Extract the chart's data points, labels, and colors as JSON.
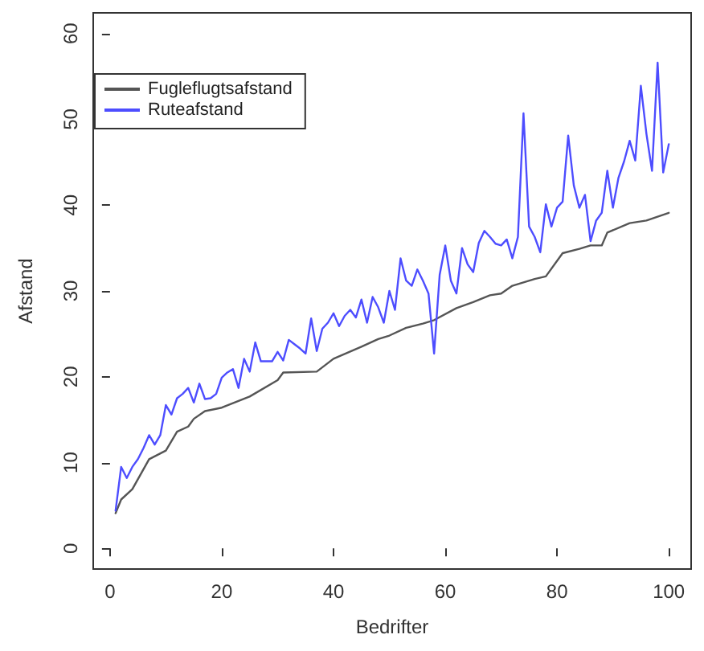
{
  "chart_data": {
    "type": "line",
    "xlabel": "Bedrifter",
    "ylabel": "Afstand",
    "x": [
      1,
      2,
      3,
      4,
      5,
      6,
      7,
      8,
      9,
      10,
      11,
      12,
      13,
      14,
      15,
      16,
      17,
      18,
      19,
      20,
      21,
      22,
      23,
      24,
      25,
      26,
      27,
      28,
      29,
      30,
      31,
      32,
      33,
      34,
      35,
      36,
      37,
      38,
      39,
      40,
      41,
      42,
      43,
      44,
      45,
      46,
      47,
      48,
      49,
      50,
      51,
      52,
      53,
      54,
      55,
      56,
      57,
      58,
      59,
      60,
      61,
      62,
      63,
      64,
      65,
      66,
      67,
      68,
      69,
      70,
      71,
      72,
      73,
      74,
      75,
      76,
      77,
      78,
      79,
      80,
      81,
      82,
      83,
      84,
      85,
      86,
      87,
      88,
      89,
      90,
      91,
      92,
      93,
      94,
      95,
      96,
      97,
      98,
      99,
      100
    ],
    "series": [
      {
        "name": "Fugleflugtsafstand",
        "color": "#555555",
        "x": [
          1,
          2,
          4,
          7,
          10,
          12,
          14,
          15,
          17,
          20,
          25,
          30,
          31,
          37,
          40,
          45,
          48,
          50,
          53,
          56,
          58,
          62,
          65,
          68,
          70,
          72,
          76,
          78,
          81,
          84,
          86,
          88,
          89,
          93,
          96,
          100
        ],
        "values": [
          4.1,
          5.7,
          6.9,
          10.4,
          11.4,
          13.6,
          14.2,
          15.1,
          16.0,
          16.4,
          17.7,
          19.6,
          20.5,
          20.6,
          22.1,
          23.5,
          24.4,
          24.8,
          25.7,
          26.2,
          26.6,
          28.0,
          28.7,
          29.5,
          29.7,
          30.6,
          31.4,
          31.7,
          34.4,
          34.9,
          35.3,
          35.3,
          36.8,
          37.9,
          38.2,
          39.1
        ]
      },
      {
        "name": "Ruteafstand",
        "color": "#4d4dff",
        "values": [
          4.4,
          9.5,
          8.2,
          9.5,
          10.4,
          11.7,
          13.2,
          12.1,
          13.2,
          16.7,
          15.6,
          17.5,
          18.0,
          18.7,
          17.0,
          19.2,
          17.4,
          17.5,
          18.0,
          19.9,
          20.5,
          20.9,
          18.7,
          22.1,
          20.6,
          24.0,
          21.8,
          21.8,
          21.8,
          22.9,
          21.9,
          24.3,
          23.8,
          23.3,
          22.7,
          26.8,
          23.0,
          25.6,
          26.3,
          27.4,
          25.9,
          27.1,
          27.8,
          26.9,
          29.0,
          26.3,
          29.3,
          28.1,
          26.3,
          30.0,
          27.8,
          33.8,
          31.2,
          30.6,
          32.5,
          31.2,
          29.7,
          22.7,
          31.9,
          35.3,
          31.2,
          29.7,
          35.0,
          33.1,
          32.2,
          35.6,
          37.0,
          36.3,
          35.5,
          35.3,
          36.0,
          33.8,
          36.3,
          50.7,
          37.5,
          36.3,
          34.5,
          40.1,
          37.5,
          39.7,
          40.4,
          48.1,
          42.3,
          39.7,
          41.2,
          35.8,
          38.2,
          39.1,
          44.0,
          39.7,
          43.2,
          45.1,
          47.5,
          45.2,
          53.9,
          48.3,
          44.0,
          56.6,
          43.8,
          47.1
        ]
      }
    ],
    "xlim": [
      -3,
      104
    ],
    "xticks": [
      0,
      20,
      40,
      60,
      80,
      100
    ],
    "ylim": [
      -2.4,
      62.4
    ],
    "yticks": [
      0,
      10,
      20,
      30,
      40,
      50,
      60
    ],
    "legend": "top left",
    "grid": false,
    "marker": "none",
    "line_style": "solid"
  }
}
